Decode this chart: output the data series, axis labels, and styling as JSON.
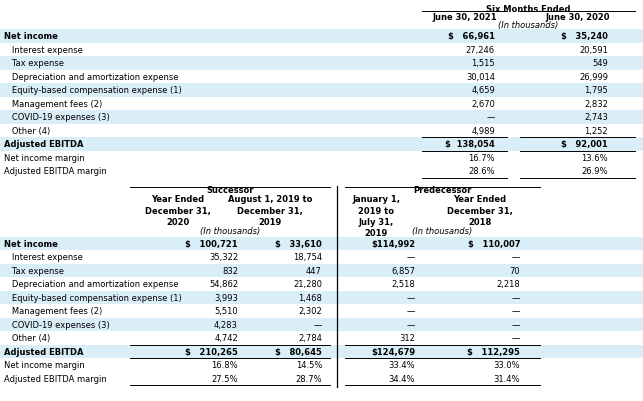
{
  "title_top": "Six Months Ended",
  "top_col1_header": "June 30, 2021",
  "top_col2_header": "June 30, 2020",
  "top_subheader": "(In thousands)",
  "top_rows": [
    {
      "label": "Net income",
      "v1": "$   66,961",
      "v2": "$   35,240",
      "bold": true,
      "shade": true,
      "top_border": false,
      "bottom_border": false
    },
    {
      "label": "   Interest expense",
      "v1": "27,246",
      "v2": "20,591",
      "bold": false,
      "shade": false,
      "top_border": false,
      "bottom_border": false
    },
    {
      "label": "   Tax expense",
      "v1": "1,515",
      "v2": "549",
      "bold": false,
      "shade": true,
      "top_border": false,
      "bottom_border": false
    },
    {
      "label": "   Depreciation and amortization expense",
      "v1": "30,014",
      "v2": "26,999",
      "bold": false,
      "shade": false,
      "top_border": false,
      "bottom_border": false
    },
    {
      "label": "   Equity-based compensation expense (1)",
      "v1": "4,659",
      "v2": "1,795",
      "bold": false,
      "shade": true,
      "top_border": false,
      "bottom_border": false
    },
    {
      "label": "   Management fees (2)",
      "v1": "2,670",
      "v2": "2,832",
      "bold": false,
      "shade": false,
      "top_border": false,
      "bottom_border": false
    },
    {
      "label": "   COVID-19 expenses (3)",
      "v1": "—",
      "v2": "2,743",
      "bold": false,
      "shade": true,
      "top_border": false,
      "bottom_border": false
    },
    {
      "label": "   Other (4)",
      "v1": "4,989",
      "v2": "1,252",
      "bold": false,
      "shade": false,
      "top_border": false,
      "bottom_border": false
    },
    {
      "label": "Adjusted EBITDA",
      "v1": "$  138,054",
      "v2": "$   92,001",
      "bold": true,
      "shade": true,
      "top_border": true,
      "bottom_border": true
    },
    {
      "label": "Net income margin",
      "v1": "16.7%",
      "v2": "13.6%",
      "bold": false,
      "shade": false,
      "top_border": false,
      "bottom_border": false
    },
    {
      "label": "Adjusted EBITDA margin",
      "v1": "28.6%",
      "v2": "26.9%",
      "bold": false,
      "shade": false,
      "top_border": false,
      "bottom_border": true
    }
  ],
  "successor_header": "Successor",
  "predecessor_header": "Predecessor",
  "bot_col_headers": [
    "Year Ended\nDecember 31,\n2020",
    "August 1, 2019 to\nDecember 31,\n2019",
    "January 1,\n2019 to\nJuly 31,\n2019",
    "Year Ended\nDecember 31,\n2018"
  ],
  "bot_subheader": "(In thousands)",
  "bot_rows": [
    {
      "label": "Net income",
      "v1": "$   100,721",
      "v2": "$   33,610",
      "v3": "$114,992",
      "v4": "$   110,007",
      "bold": true,
      "shade": true,
      "top_border": false,
      "bottom_border": false
    },
    {
      "label": "   Interest expense",
      "v1": "35,322",
      "v2": "18,754",
      "v3": "—",
      "v4": "—",
      "bold": false,
      "shade": false,
      "top_border": false,
      "bottom_border": false
    },
    {
      "label": "   Tax expense",
      "v1": "832",
      "v2": "447",
      "v3": "6,857",
      "v4": "70",
      "bold": false,
      "shade": true,
      "top_border": false,
      "bottom_border": false
    },
    {
      "label": "   Depreciation and amortization expense",
      "v1": "54,862",
      "v2": "21,280",
      "v3": "2,518",
      "v4": "2,218",
      "bold": false,
      "shade": false,
      "top_border": false,
      "bottom_border": false
    },
    {
      "label": "   Equity-based compensation expense (1)",
      "v1": "3,993",
      "v2": "1,468",
      "v3": "—",
      "v4": "—",
      "bold": false,
      "shade": true,
      "top_border": false,
      "bottom_border": false
    },
    {
      "label": "   Management fees (2)",
      "v1": "5,510",
      "v2": "2,302",
      "v3": "—",
      "v4": "—",
      "bold": false,
      "shade": false,
      "top_border": false,
      "bottom_border": false
    },
    {
      "label": "   COVID-19 expenses (3)",
      "v1": "4,283",
      "v2": "—",
      "v3": "—",
      "v4": "—",
      "bold": false,
      "shade": true,
      "top_border": false,
      "bottom_border": false
    },
    {
      "label": "   Other (4)",
      "v1": "4,742",
      "v2": "2,784",
      "v3": "312",
      "v4": "—",
      "bold": false,
      "shade": false,
      "top_border": false,
      "bottom_border": false
    },
    {
      "label": "Adjusted EBITDA",
      "v1": "$   210,265",
      "v2": "$   80,645",
      "v3": "$124,679",
      "v4": "$   112,295",
      "bold": true,
      "shade": true,
      "top_border": true,
      "bottom_border": true
    },
    {
      "label": "Net income margin",
      "v1": "16.8%",
      "v2": "14.5%",
      "v3": "33.4%",
      "v4": "33.0%",
      "bold": false,
      "shade": false,
      "top_border": false,
      "bottom_border": false
    },
    {
      "label": "Adjusted EBITDA margin",
      "v1": "27.5%",
      "v2": "28.7%",
      "v3": "34.4%",
      "v4": "31.4%",
      "bold": false,
      "shade": false,
      "top_border": false,
      "bottom_border": true
    }
  ],
  "shade_color": "#daeef8",
  "bg_color": "#ffffff",
  "fs": 6.0
}
